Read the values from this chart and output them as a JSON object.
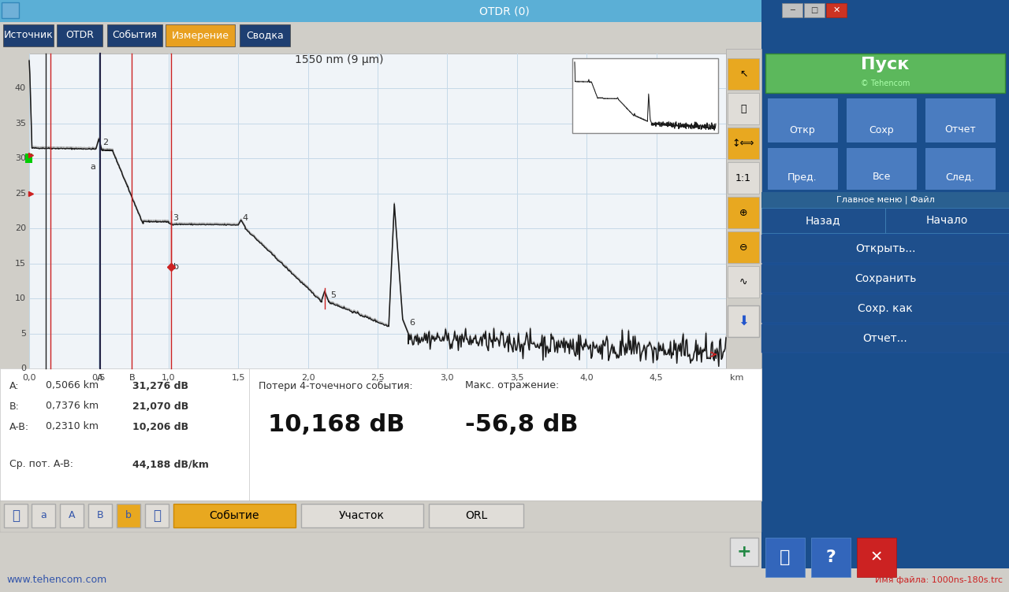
{
  "title": "OTDR (0)",
  "wavelength_label": "1550 nm (9 μm)",
  "filename_label": "Имя файла: 1000ns-180s.trc",
  "website": "www.tehencom.com",
  "tabs": [
    "Источник",
    "OTDR",
    "События",
    "Измерение",
    "Сводка"
  ],
  "bg_color": "#d0cec8",
  "title_bar_color": "#5bafd6",
  "grid_color": "#c5d9e8",
  "right_panel_bg": "#1a4e8c",
  "start_button_color": "#5cb85c",
  "measurements": {
    "A_km": "0,5066 km",
    "A_dB": "31,276 dB",
    "B_km": "0,7376 km",
    "B_dB": "21,070 dB",
    "AB_km": "0,2310 km",
    "AB_dB": "10,206 dB",
    "avg_loss": "44,188 dB/km",
    "event_loss": "10,168 dB",
    "max_reflection": "-56,8 dB"
  },
  "labels": {
    "A_label": "A:",
    "B_label": "B:",
    "AB_label": "A-B:",
    "avg_label": "Ср. пот. A-B:",
    "event_loss_label": "Потери 4-точечного события:",
    "max_refl_label": "Макс. отражение:"
  },
  "ylim": [
    0,
    45
  ],
  "xlim_km": [
    0.0,
    5.0
  ],
  "yticks": [
    0,
    5,
    10,
    15,
    20,
    25,
    30,
    35,
    40
  ],
  "xticks": [
    0.0,
    0.5,
    1.0,
    1.5,
    2.0,
    2.5,
    3.0,
    3.5,
    4.0,
    4.5
  ],
  "marker_A_km": 0.5066,
  "marker_B_km": 0.7376,
  "tab_dark_blue": "#1e3f72",
  "tab_orange": "#e8a020",
  "btn_orange": "#e8a820",
  "btn_gray": "#e0ddd8",
  "right_icon_blue": "#4a7cc0",
  "right_menu_blue": "#1e4f8c",
  "right_sep_blue": "#2a6090"
}
